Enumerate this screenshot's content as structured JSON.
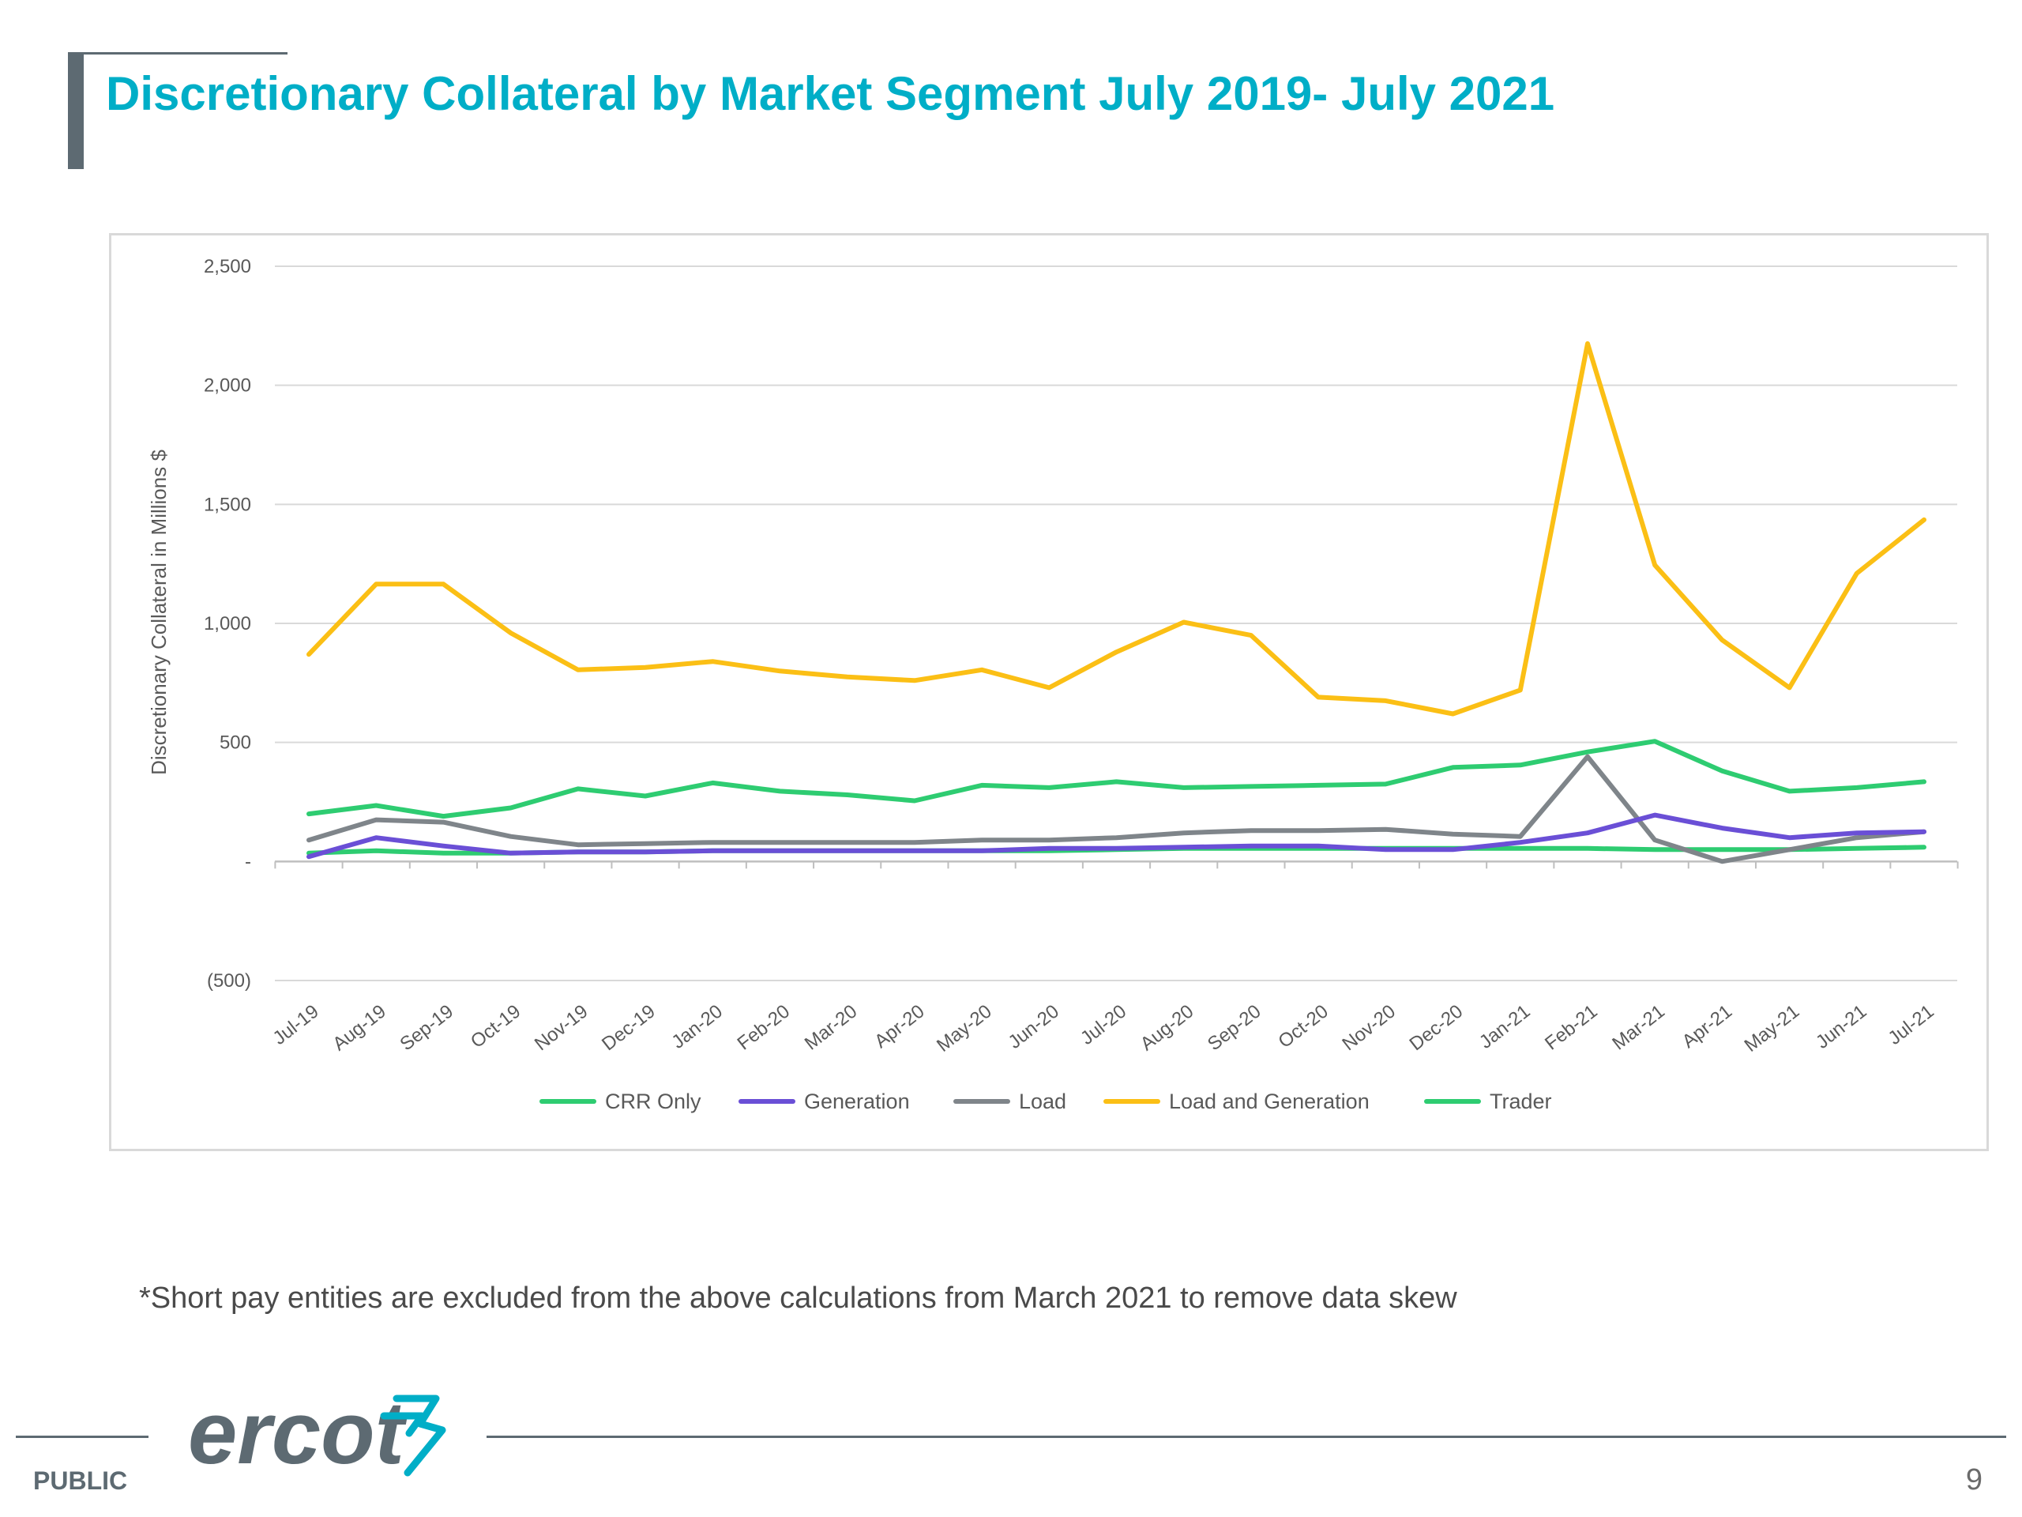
{
  "slide": {
    "title": "Discretionary Collateral by Market Segment July 2019- July 2021",
    "footnote": "*Short pay entities are excluded from the above calculations from March 2021 to remove data skew",
    "classification": "PUBLIC",
    "page_number": "9",
    "logo_text": "ercot"
  },
  "colors": {
    "title": "#00aec7",
    "accent_gray": "#5d6a72",
    "crr_only": "#2ecc71",
    "generation": "#6a4fd6",
    "load": "#7f858a",
    "load_and_generation": "#fbbf15",
    "trader": "#2ecc71"
  },
  "chart_data": {
    "type": "line",
    "title": "",
    "xlabel": "",
    "ylabel": "Discretionary Collateral in Millions $",
    "ylim": [
      -500,
      2500
    ],
    "yticks": [
      -500,
      0,
      500,
      1000,
      1500,
      2000,
      2500
    ],
    "ytick_labels": [
      "(500)",
      "-",
      "500",
      "1,000",
      "1,500",
      "2,000",
      "2,500"
    ],
    "grid": true,
    "legend_position": "bottom",
    "categories": [
      "Jul-19",
      "Aug-19",
      "Sep-19",
      "Oct-19",
      "Nov-19",
      "Dec-19",
      "Jan-20",
      "Feb-20",
      "Mar-20",
      "Apr-20",
      "May-20",
      "Jun-20",
      "Jul-20",
      "Aug-20",
      "Sep-20",
      "Oct-20",
      "Nov-20",
      "Dec-20",
      "Jan-21",
      "Feb-21",
      "Mar-21",
      "Apr-21",
      "May-21",
      "Jun-21",
      "Jul-21"
    ],
    "series": [
      {
        "name": "CRR Only",
        "color": "#2ecc71",
        "values": [
          200,
          235,
          190,
          225,
          305,
          275,
          330,
          295,
          280,
          255,
          320,
          310,
          335,
          310,
          315,
          320,
          325,
          395,
          405,
          460,
          505,
          380,
          295,
          310,
          335
        ]
      },
      {
        "name": "Generation",
        "color": "#6a4fd6",
        "values": [
          20,
          100,
          65,
          35,
          40,
          40,
          45,
          45,
          45,
          45,
          45,
          55,
          55,
          60,
          65,
          65,
          50,
          50,
          80,
          120,
          195,
          140,
          100,
          120,
          125
        ]
      },
      {
        "name": "Load",
        "color": "#7f858a",
        "values": [
          90,
          175,
          165,
          105,
          70,
          75,
          80,
          80,
          80,
          80,
          90,
          90,
          100,
          120,
          130,
          130,
          135,
          115,
          105,
          440,
          90,
          0,
          50,
          100,
          125
        ]
      },
      {
        "name": "Load and Generation",
        "color": "#fbbf15",
        "values": [
          870,
          1165,
          1165,
          960,
          805,
          815,
          840,
          800,
          775,
          760,
          805,
          730,
          880,
          1005,
          950,
          690,
          675,
          620,
          720,
          2175,
          1245,
          930,
          730,
          1210,
          1435
        ]
      },
      {
        "name": "Trader",
        "color": "#2ecc71",
        "values": [
          35,
          45,
          35,
          35,
          40,
          40,
          45,
          45,
          45,
          45,
          45,
          45,
          50,
          55,
          55,
          55,
          55,
          55,
          55,
          55,
          50,
          50,
          50,
          55,
          60
        ]
      }
    ]
  }
}
